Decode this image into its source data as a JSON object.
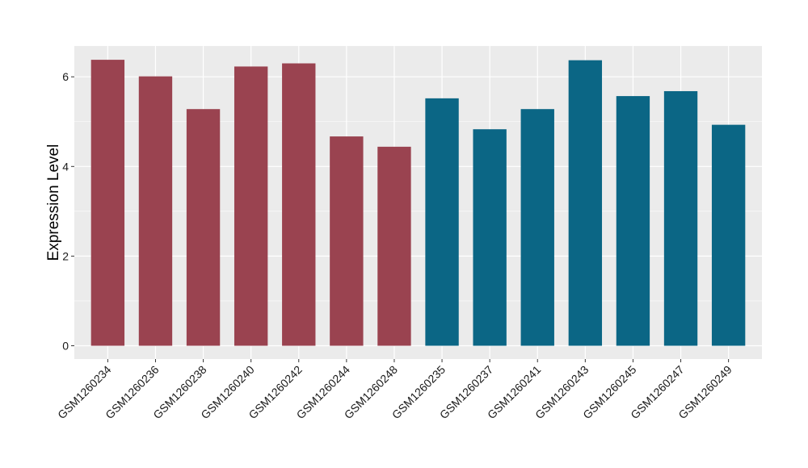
{
  "chart_data": {
    "type": "bar",
    "title": "",
    "xlabel": "",
    "ylabel": "Expression Level",
    "ylim": [
      0,
      6.6
    ],
    "yticks": [
      0,
      2,
      4,
      6
    ],
    "grid": true,
    "categories": [
      "GSM1260234",
      "GSM1260236",
      "GSM1260238",
      "GSM1260240",
      "GSM1260242",
      "GSM1260244",
      "GSM1260248",
      "GSM1260235",
      "GSM1260237",
      "GSM1260241",
      "GSM1260243",
      "GSM1260245",
      "GSM1260247",
      "GSM1260249"
    ],
    "values": [
      6.38,
      6.01,
      5.28,
      6.23,
      6.3,
      4.67,
      4.44,
      5.52,
      4.83,
      5.28,
      6.37,
      5.57,
      5.68,
      4.93
    ],
    "colors": [
      "#9a4350",
      "#9a4350",
      "#9a4350",
      "#9a4350",
      "#9a4350",
      "#9a4350",
      "#9a4350",
      "#0b6685",
      "#0b6685",
      "#0b6685",
      "#0b6685",
      "#0b6685",
      "#0b6685",
      "#0b6685"
    ],
    "panel_color": "#ebebeb",
    "grid_color": "#ffffff"
  }
}
